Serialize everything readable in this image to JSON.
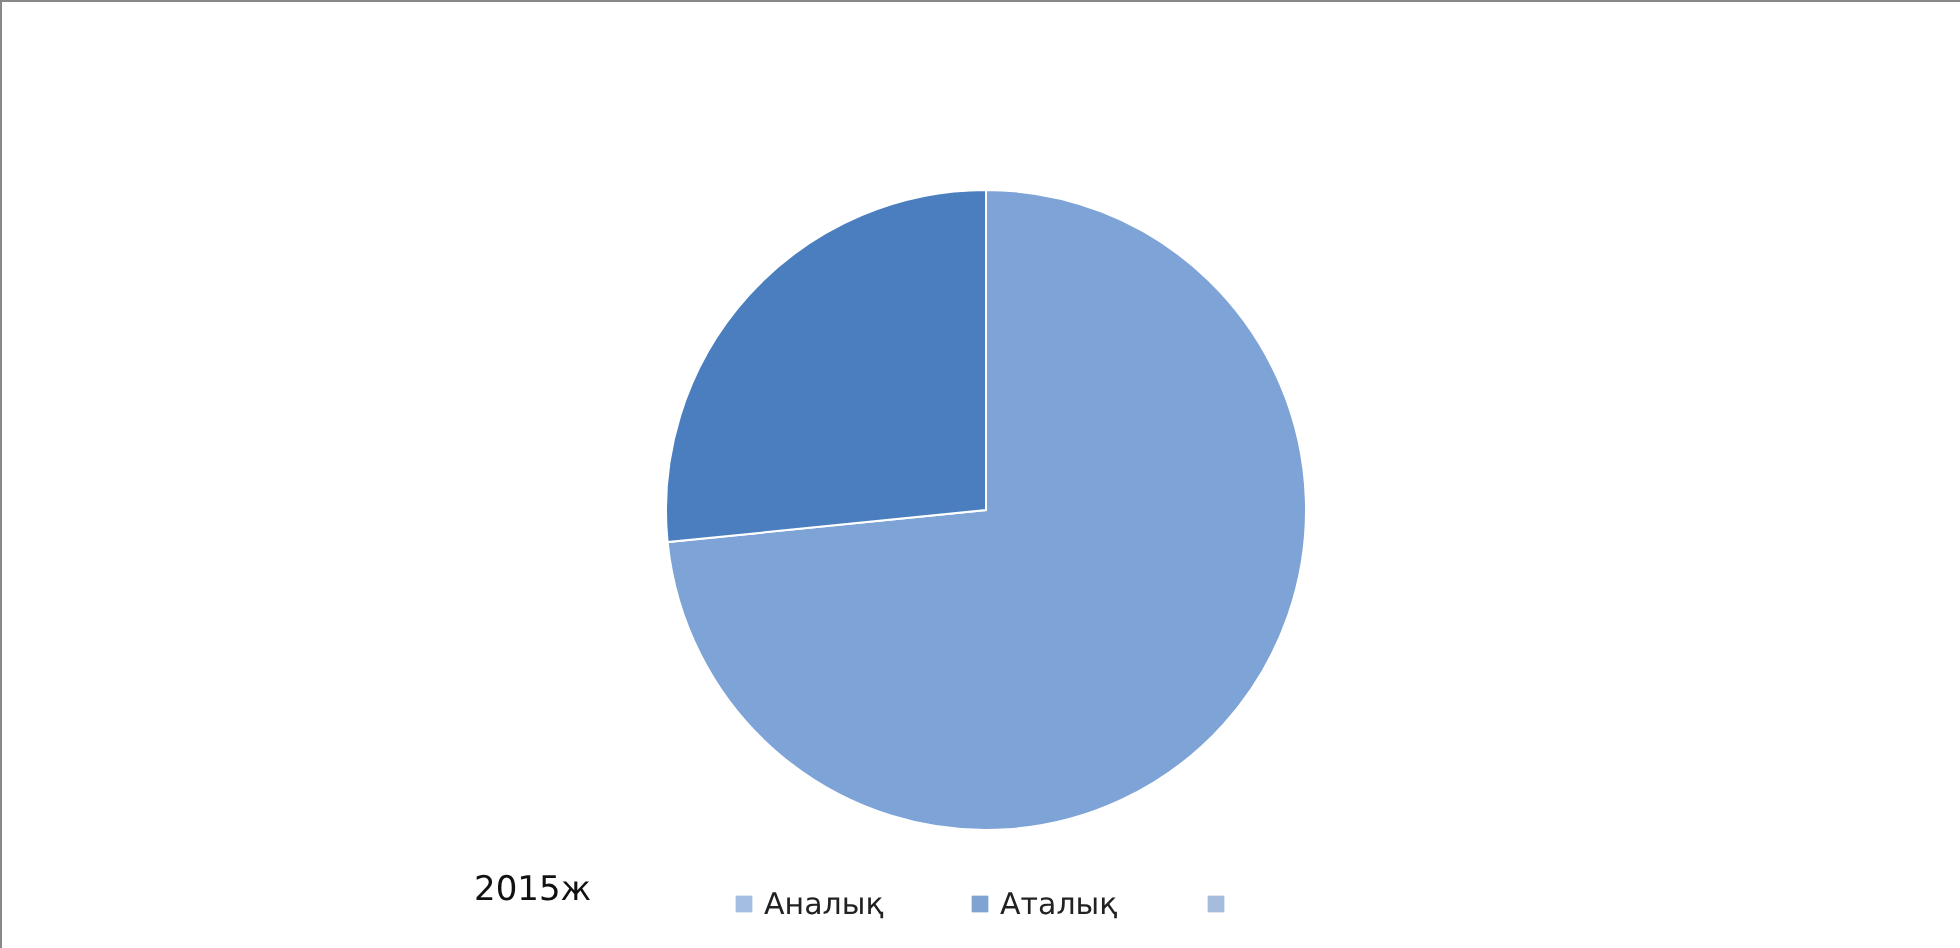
{
  "chart_data": {
    "type": "pie",
    "title": "2015ж",
    "categories": [
      "Аналық",
      "Аталық",
      null
    ],
    "values": [
      73.4,
      26.6,
      0
    ],
    "colors": [
      "#7ea3d6",
      "#4a7ebf",
      "#7f9fd0"
    ],
    "legend": "bottom"
  }
}
